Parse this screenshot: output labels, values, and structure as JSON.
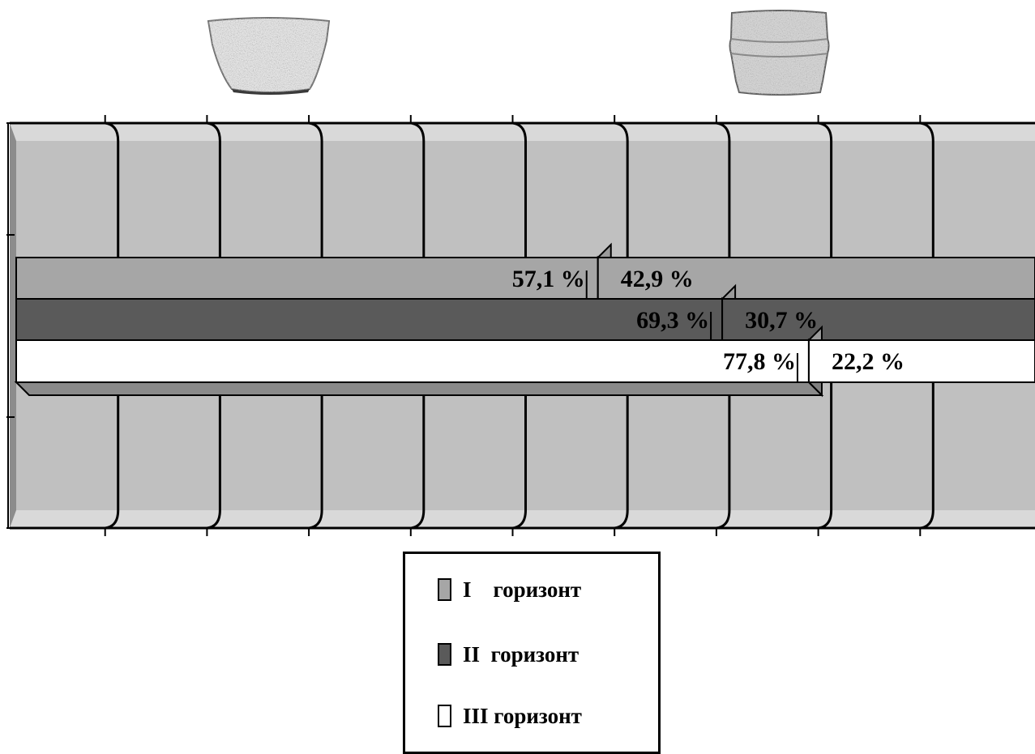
{
  "chart_data": {
    "type": "bar",
    "orientation": "horizontal-stacked-100",
    "categories": [
      "I    горизонт",
      "II  горизонт",
      "III горизонт"
    ],
    "series": [
      {
        "values": [
          57.1,
          69.3,
          77.8
        ],
        "labels": [
          "57,1 %",
          "69,3 %",
          "77,8 %"
        ],
        "pictogram": "bowl-icon"
      },
      {
        "values": [
          42.9,
          30.7,
          22.2
        ],
        "labels": [
          "42,9 %",
          "30,7 %",
          "22,2 %"
        ],
        "pictogram": "pot-icon"
      }
    ],
    "category_colors": [
      "#a6a6a6",
      "#5a5a5a",
      "#ffffff"
    ],
    "xlim": [
      0,
      100
    ],
    "grid": true,
    "legend_position": "bottom",
    "title": "",
    "xlabel": "",
    "ylabel": ""
  },
  "legend": {
    "items": [
      {
        "label": "I    горизонт",
        "color": "#a6a6a6"
      },
      {
        "label": "II  горизонт",
        "color": "#5a5a5a"
      },
      {
        "label": "III горизонт",
        "color": "#ffffff"
      }
    ]
  },
  "colors": {
    "plot_background": "#c0c0c0",
    "frame": "#8c8c8c",
    "gridline": "#000000"
  }
}
